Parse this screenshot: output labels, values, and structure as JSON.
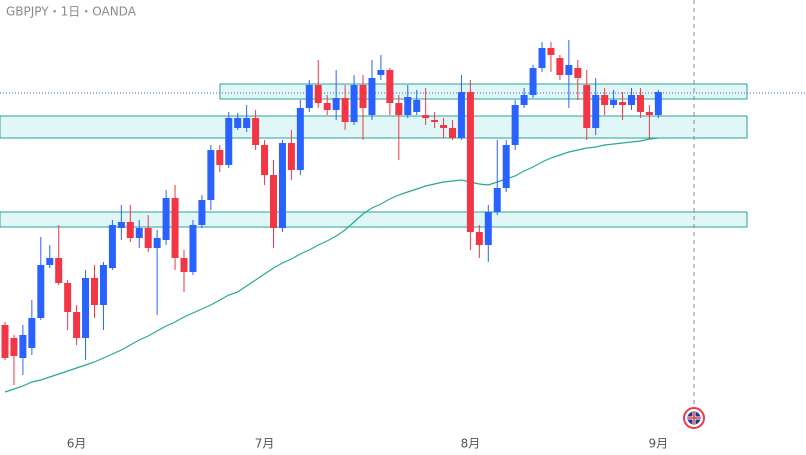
{
  "chart_data": {
    "type": "candlestick",
    "title": "GBPJPY・1日・OANDA",
    "categories": [
      null,
      null,
      null,
      null,
      null,
      null,
      null,
      null,
      "6月",
      null,
      null,
      null,
      null,
      null,
      null,
      null,
      null,
      null,
      null,
      null,
      null,
      null,
      null,
      null,
      null,
      null,
      null,
      null,
      null,
      "7月",
      null,
      null,
      null,
      null,
      null,
      null,
      null,
      null,
      null,
      null,
      null,
      null,
      null,
      null,
      null,
      null,
      null,
      null,
      null,
      null,
      null,
      null,
      "8月",
      null,
      null,
      null,
      null,
      null,
      null,
      null,
      null,
      null,
      null,
      null,
      null,
      null,
      null,
      null,
      null,
      null,
      null,
      null,
      null,
      "9月"
    ],
    "open": [
      130,
      117,
      97,
      107,
      137,
      190,
      197,
      172,
      143,
      117,
      177,
      150,
      187,
      227,
      233,
      217,
      227,
      207,
      215,
      257,
      197,
      183,
      230,
      255,
      305,
      290,
      327,
      327,
      337,
      310,
      280,
      227,
      312,
      285,
      347,
      370,
      352,
      345,
      357,
      333,
      370,
      340,
      380,
      385,
      352,
      340,
      343,
      340,
      335,
      330,
      327,
      317,
      363,
      223,
      210,
      243,
      267,
      310,
      350,
      360,
      387,
      407,
      397,
      380,
      387,
      370,
      327,
      360,
      350,
      353,
      350,
      360,
      343,
      340
    ],
    "high": [
      133,
      120,
      130,
      155,
      218,
      210,
      230,
      175,
      150,
      185,
      190,
      193,
      235,
      250,
      250,
      235,
      240,
      225,
      265,
      270,
      205,
      235,
      260,
      310,
      310,
      343,
      342,
      350,
      345,
      315,
      295,
      315,
      325,
      355,
      375,
      395,
      360,
      385,
      370,
      380,
      380,
      395,
      400,
      387,
      360,
      370,
      365,
      367,
      343,
      337,
      335,
      380,
      375,
      230,
      250,
      315,
      315,
      355,
      367,
      390,
      413,
      413,
      400,
      415,
      395,
      385,
      377,
      367,
      365,
      363,
      367,
      367,
      350,
      365
    ],
    "low": [
      95,
      70,
      80,
      100,
      135,
      187,
      170,
      125,
      110,
      95,
      137,
      125,
      185,
      215,
      213,
      207,
      203,
      140,
      210,
      185,
      163,
      180,
      227,
      245,
      283,
      287,
      325,
      323,
      305,
      270,
      207,
      223,
      275,
      280,
      343,
      347,
      340,
      335,
      325,
      330,
      315,
      335,
      375,
      340,
      295,
      337,
      340,
      330,
      327,
      317,
      315,
      315,
      205,
      197,
      193,
      240,
      263,
      305,
      347,
      357,
      383,
      383,
      375,
      347,
      355,
      315,
      320,
      340,
      347,
      335,
      345,
      337,
      317,
      337
    ],
    "close": [
      97,
      99,
      120,
      137,
      190,
      197,
      172,
      143,
      117,
      177,
      150,
      190,
      230,
      233,
      217,
      227,
      207,
      217,
      257,
      197,
      183,
      230,
      255,
      305,
      290,
      337,
      337,
      337,
      310,
      280,
      227,
      312,
      285,
      347,
      370,
      352,
      345,
      357,
      333,
      370,
      347,
      377,
      385,
      352,
      340,
      358,
      355,
      337,
      333,
      327,
      317,
      363,
      223,
      210,
      243,
      267,
      310,
      350,
      360,
      387,
      407,
      400,
      380,
      390,
      377,
      327,
      360,
      350,
      355,
      350,
      360,
      343,
      340,
      363
    ],
    "up_color": "#2962ff",
    "down_color": "#f23645",
    "ma": {
      "color": "#22ab94",
      "values": [
        63,
        66,
        69,
        73,
        75,
        78,
        81,
        84,
        87,
        90,
        93,
        97,
        101,
        105,
        110,
        115,
        119,
        124,
        129,
        133,
        138,
        142,
        146,
        150,
        155,
        160,
        163,
        169,
        175,
        181,
        187,
        192,
        196,
        201,
        205,
        210,
        214,
        219,
        225,
        233,
        241,
        247,
        251,
        256,
        260,
        263,
        266,
        269,
        271,
        273,
        274,
        275,
        273,
        271,
        270,
        273,
        276,
        279,
        284,
        288,
        293,
        297,
        300,
        303,
        305,
        307,
        308,
        310,
        311,
        312,
        313,
        314,
        316,
        317
      ]
    },
    "ylim": [
      0,
      455
    ]
  }
}
